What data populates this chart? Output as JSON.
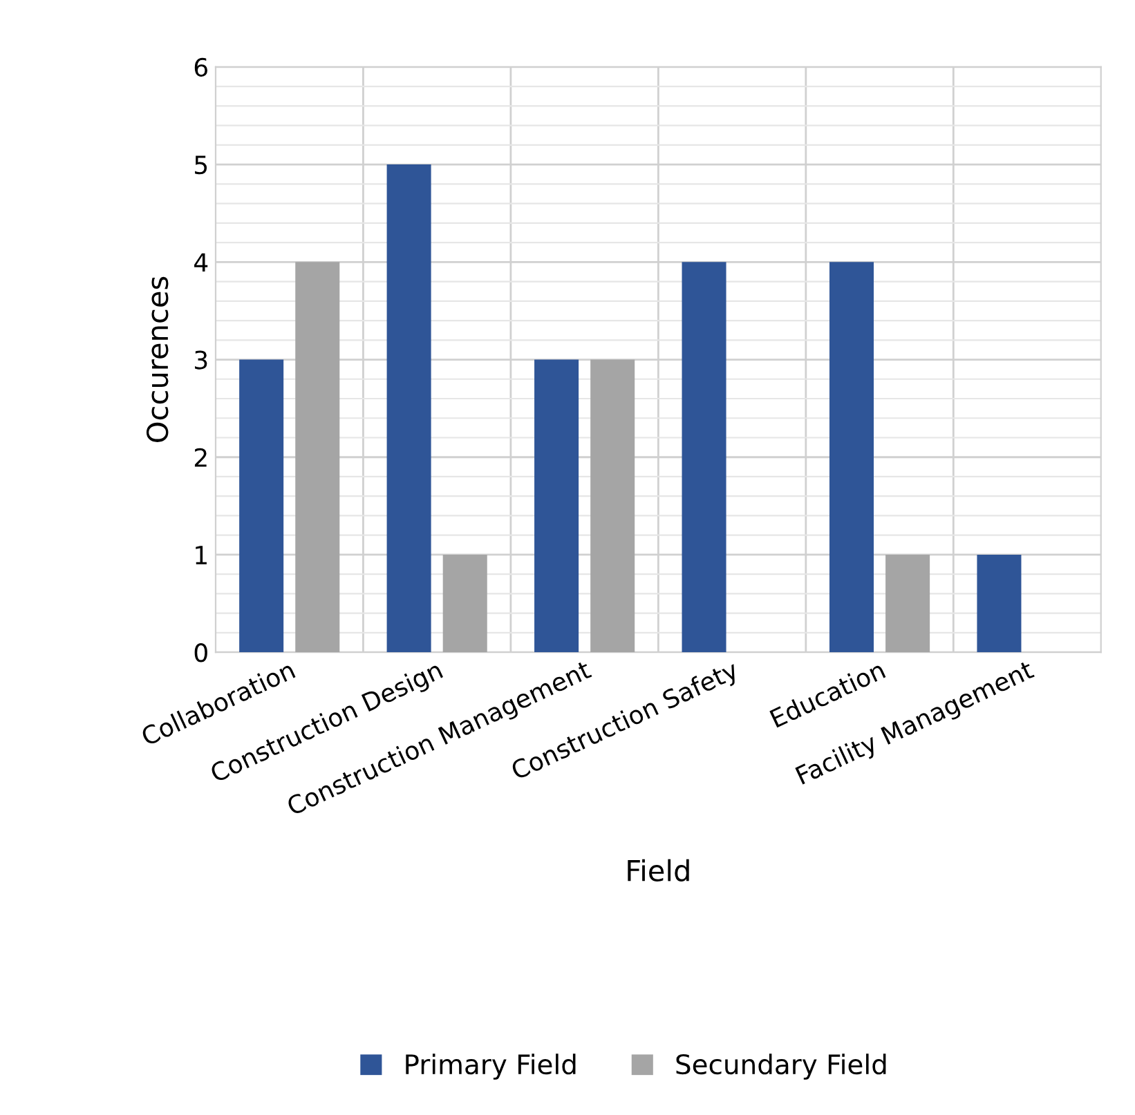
{
  "chart_data": {
    "type": "bar",
    "xlabel": "Field",
    "ylabel": "Occurences",
    "categories": [
      "Collaboration",
      "Construction Design",
      "Construction Management",
      "Construction Safety",
      "Education",
      "Facility Management"
    ],
    "series": [
      {
        "name": "Primary Field",
        "color": "#2f5597",
        "values": [
          3,
          5,
          3,
          4,
          4,
          1
        ]
      },
      {
        "name": "Secundary Field",
        "color": "#a5a5a5",
        "values": [
          4,
          1,
          3,
          0,
          1,
          0
        ]
      }
    ],
    "ylim": [
      0,
      6
    ],
    "yticks": [
      0,
      1,
      2,
      3,
      4,
      5,
      6
    ],
    "grid": true,
    "legend": "bottom"
  }
}
